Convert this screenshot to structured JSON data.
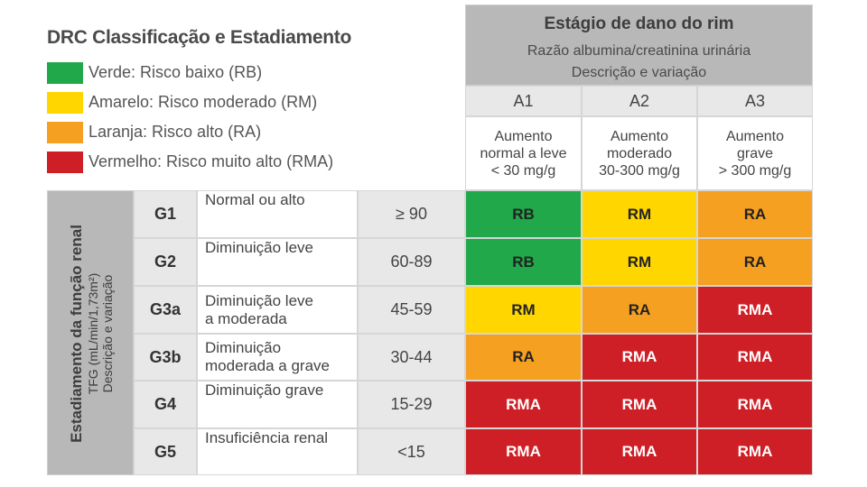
{
  "title": "DRC Classificação e Estadiamento",
  "legend": [
    {
      "label": "Verde: Risco baixo (RB)",
      "color": "#20a84a"
    },
    {
      "label": "Amarelo: Risco moderado (RM)",
      "color": "#ffd600"
    },
    {
      "label": "Laranja: Risco alto (RA)",
      "color": "#f5a021"
    },
    {
      "label": "Vermelho: Risco muito alto (RMA)",
      "color": "#cf1f26"
    }
  ],
  "albuminuria_header": {
    "title": "Estágio de dano do rim",
    "subtitle1": "Razão albumina/creatinina urinária",
    "subtitle2": "Descrição e variação"
  },
  "albuminuria_columns": [
    {
      "code": "A1",
      "desc_line1": "Aumento",
      "desc_line2": "normal a leve",
      "desc_line3": "< 30 mg/g"
    },
    {
      "code": "A2",
      "desc_line1": "Aumento",
      "desc_line2": "moderado",
      "desc_line3": "30-300 mg/g"
    },
    {
      "code": "A3",
      "desc_line1": "Aumento",
      "desc_line2": "grave",
      "desc_line3": "> 300 mg/g"
    }
  ],
  "gfr_header": {
    "title": "Estadiamento da função renal",
    "subtitle1": "TFG (mL/min/1,73m²)",
    "subtitle2": "Descrição e variação"
  },
  "gfr_rows": [
    {
      "code": "G1",
      "desc_line1": "Normal ou alto",
      "desc_line2": "",
      "range": "≥ 90",
      "risks": [
        "RB",
        "RM",
        "RA"
      ]
    },
    {
      "code": "G2",
      "desc_line1": "Diminuição leve",
      "desc_line2": "",
      "range": "60-89",
      "risks": [
        "RB",
        "RM",
        "RA"
      ]
    },
    {
      "code": "G3a",
      "desc_line1": "Diminuição leve",
      "desc_line2": "a moderada",
      "range": "45-59",
      "risks": [
        "RM",
        "RA",
        "RMA"
      ]
    },
    {
      "code": "G3b",
      "desc_line1": "Diminuição",
      "desc_line2": "moderada a grave",
      "range": "30-44",
      "risks": [
        "RA",
        "RMA",
        "RMA"
      ]
    },
    {
      "code": "G4",
      "desc_line1": "Diminuição grave",
      "desc_line2": "",
      "range": "15-29",
      "risks": [
        "RMA",
        "RMA",
        "RMA"
      ]
    },
    {
      "code": "G5",
      "desc_line1": "Insuficiência renal",
      "desc_line2": "",
      "range": "<15",
      "risks": [
        "RMA",
        "RMA",
        "RMA"
      ]
    }
  ],
  "risk_colors": {
    "RB": "#20a84a",
    "RM": "#ffd600",
    "RA": "#f5a021",
    "RMA": "#cf1f26"
  }
}
